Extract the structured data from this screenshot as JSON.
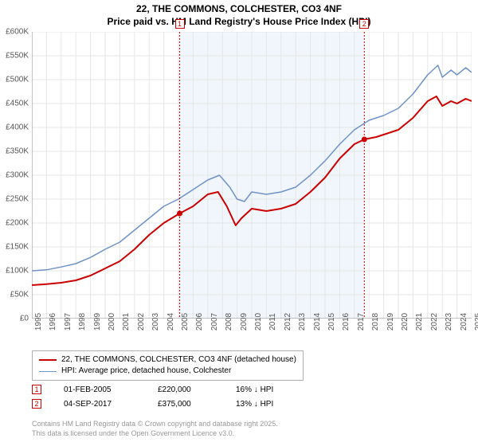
{
  "title_line1": "22, THE COMMONS, COLCHESTER, CO3 4NF",
  "title_line2": "Price paid vs. HM Land Registry's House Price Index (HPI)",
  "chart": {
    "type": "line",
    "background_color": "#ffffff",
    "highlight_band_color": "#f0f6fb",
    "grid_color": "#e6e6e6",
    "axis_color": "#888888",
    "x_start_year": 1995,
    "x_end_year": 2025,
    "y_min": 0,
    "y_max": 600000,
    "y_tick_step": 50000,
    "y_tick_labels": [
      "£0",
      "£50K",
      "£100K",
      "£150K",
      "£200K",
      "£250K",
      "£300K",
      "£350K",
      "£400K",
      "£450K",
      "£500K",
      "£550K",
      "£600K"
    ],
    "x_tick_labels": [
      "1995",
      "1996",
      "1997",
      "1998",
      "1999",
      "2000",
      "2001",
      "2002",
      "2003",
      "2004",
      "2005",
      "2006",
      "2007",
      "2008",
      "2009",
      "2010",
      "2011",
      "2012",
      "2013",
      "2014",
      "2015",
      "2016",
      "2017",
      "2018",
      "2019",
      "2020",
      "2021",
      "2022",
      "2023",
      "2024",
      "2025"
    ],
    "series": [
      {
        "name": "price_paid",
        "label": "22, THE COMMONS, COLCHESTER, CO3 4NF (detached house)",
        "color": "#cc0000",
        "line_width": 2,
        "points": [
          [
            1995.0,
            70000
          ],
          [
            1996.0,
            72000
          ],
          [
            1997.0,
            75000
          ],
          [
            1998.0,
            80000
          ],
          [
            1999.0,
            90000
          ],
          [
            2000.0,
            105000
          ],
          [
            2001.0,
            120000
          ],
          [
            2002.0,
            145000
          ],
          [
            2003.0,
            175000
          ],
          [
            2004.0,
            200000
          ],
          [
            2005.083,
            220000
          ],
          [
            2006.0,
            235000
          ],
          [
            2007.0,
            260000
          ],
          [
            2007.7,
            265000
          ],
          [
            2008.3,
            235000
          ],
          [
            2008.9,
            195000
          ],
          [
            2009.3,
            210000
          ],
          [
            2010.0,
            230000
          ],
          [
            2011.0,
            225000
          ],
          [
            2012.0,
            230000
          ],
          [
            2013.0,
            240000
          ],
          [
            2014.0,
            265000
          ],
          [
            2015.0,
            295000
          ],
          [
            2016.0,
            335000
          ],
          [
            2017.0,
            365000
          ],
          [
            2017.68,
            375000
          ],
          [
            2018.5,
            380000
          ],
          [
            2019.0,
            385000
          ],
          [
            2020.0,
            395000
          ],
          [
            2021.0,
            420000
          ],
          [
            2022.0,
            455000
          ],
          [
            2022.6,
            465000
          ],
          [
            2023.0,
            445000
          ],
          [
            2023.6,
            455000
          ],
          [
            2024.0,
            450000
          ],
          [
            2024.6,
            460000
          ],
          [
            2025.0,
            455000
          ]
        ]
      },
      {
        "name": "hpi",
        "label": "HPI: Average price, detached house, Colchester",
        "color": "#6f93c8",
        "line_width": 1.5,
        "points": [
          [
            1995.0,
            100000
          ],
          [
            1996.0,
            102000
          ],
          [
            1997.0,
            108000
          ],
          [
            1998.0,
            115000
          ],
          [
            1999.0,
            128000
          ],
          [
            2000.0,
            145000
          ],
          [
            2001.0,
            160000
          ],
          [
            2002.0,
            185000
          ],
          [
            2003.0,
            210000
          ],
          [
            2004.0,
            235000
          ],
          [
            2005.0,
            250000
          ],
          [
            2006.0,
            270000
          ],
          [
            2007.0,
            290000
          ],
          [
            2007.8,
            300000
          ],
          [
            2008.5,
            275000
          ],
          [
            2009.0,
            250000
          ],
          [
            2009.5,
            245000
          ],
          [
            2010.0,
            265000
          ],
          [
            2011.0,
            260000
          ],
          [
            2012.0,
            265000
          ],
          [
            2013.0,
            275000
          ],
          [
            2014.0,
            300000
          ],
          [
            2015.0,
            330000
          ],
          [
            2016.0,
            365000
          ],
          [
            2017.0,
            395000
          ],
          [
            2018.0,
            415000
          ],
          [
            2019.0,
            425000
          ],
          [
            2020.0,
            440000
          ],
          [
            2021.0,
            470000
          ],
          [
            2022.0,
            510000
          ],
          [
            2022.7,
            530000
          ],
          [
            2023.0,
            505000
          ],
          [
            2023.6,
            520000
          ],
          [
            2024.0,
            510000
          ],
          [
            2024.6,
            525000
          ],
          [
            2025.0,
            515000
          ]
        ]
      }
    ],
    "sale_markers": [
      {
        "id": "1",
        "x": 2005.083,
        "y": 220000,
        "color": "#cc0000"
      },
      {
        "id": "2",
        "x": 2017.68,
        "y": 375000,
        "color": "#cc0000"
      }
    ],
    "highlight_band": {
      "from_x": 2005.083,
      "to_x": 2017.68
    }
  },
  "legend": {
    "border_color": "#b0b0b0",
    "items": [
      {
        "color": "#cc0000",
        "width": 2,
        "label": "22, THE COMMONS, COLCHESTER, CO3 4NF (detached house)"
      },
      {
        "color": "#6f93c8",
        "width": 1.5,
        "label": "HPI: Average price, detached house, Colchester"
      }
    ]
  },
  "sales_table": {
    "rows": [
      {
        "marker": "1",
        "marker_color": "#cc0000",
        "date": "01-FEB-2005",
        "price": "£220,000",
        "delta": "16% ↓ HPI"
      },
      {
        "marker": "2",
        "marker_color": "#cc0000",
        "date": "04-SEP-2017",
        "price": "£375,000",
        "delta": "13% ↓ HPI"
      }
    ]
  },
  "footer_line1": "Contains HM Land Registry data © Crown copyright and database right 2025.",
  "footer_line2": "This data is licensed under the Open Government Licence v3.0."
}
